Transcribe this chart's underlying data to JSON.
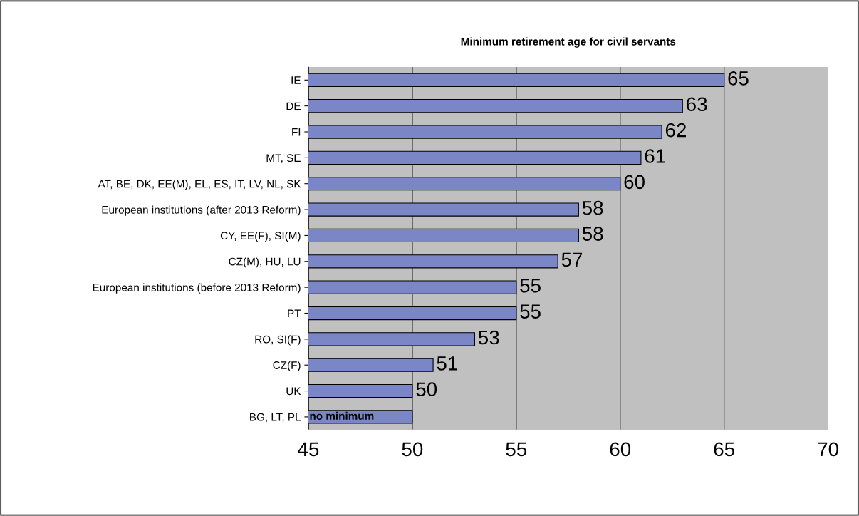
{
  "chart_data": {
    "type": "bar",
    "orientation": "horizontal",
    "title": "Minimum retirement age for civil servants",
    "categories": [
      "IE",
      "DE",
      "FI",
      "MT, SE",
      "AT, BE, DK, EE(M), EL, ES, IT, LV, NL, SK",
      "European institutions (after 2013 Reform)",
      "CY, EE(F), SI(M)",
      "CZ(M), HU, LU",
      "European institutions (before 2013 Reform)",
      "PT",
      "RO, SI(F)",
      "CZ(F)",
      "UK",
      "BG, LT, PL"
    ],
    "values": [
      65,
      63,
      62,
      61,
      60,
      58,
      58,
      57,
      55,
      55,
      53,
      51,
      50,
      50
    ],
    "value_labels": [
      "65",
      "63",
      "62",
      "61",
      "60",
      "58",
      "58",
      "57",
      "55",
      "55",
      "53",
      "51",
      "50",
      "no minimum"
    ],
    "color": "#7b86c6",
    "xlim": [
      45,
      70
    ],
    "xticks": [
      45,
      50,
      55,
      60,
      65,
      70
    ],
    "grid": "x",
    "legend": false
  }
}
